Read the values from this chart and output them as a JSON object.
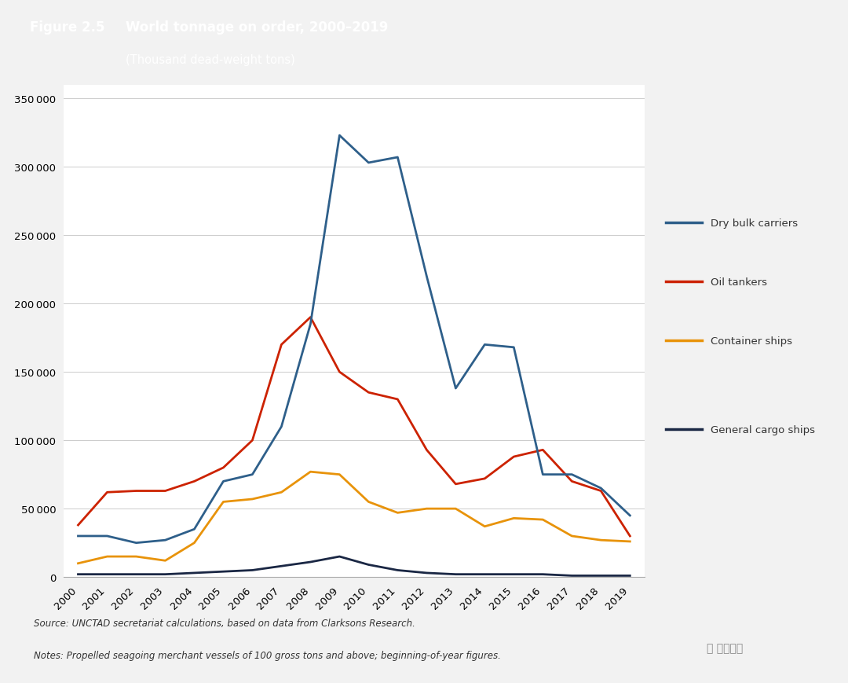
{
  "title_fig": "Figure 2.5",
  "title_main": "World tonnage on order, 2000–2019",
  "title_sub": "(Thousand dead-weight tons)",
  "years": [
    2000,
    2001,
    2002,
    2003,
    2004,
    2005,
    2006,
    2007,
    2008,
    2009,
    2010,
    2011,
    2012,
    2013,
    2014,
    2015,
    2016,
    2017,
    2018,
    2019
  ],
  "dry_bulk": [
    30000,
    30000,
    25000,
    27000,
    35000,
    70000,
    75000,
    110000,
    185000,
    323000,
    303000,
    307000,
    220000,
    138000,
    170000,
    168000,
    75000,
    75000,
    65000,
    45000
  ],
  "oil_tankers": [
    38000,
    62000,
    63000,
    63000,
    70000,
    80000,
    100000,
    170000,
    190000,
    150000,
    135000,
    130000,
    93000,
    68000,
    72000,
    88000,
    93000,
    70000,
    63000,
    30000
  ],
  "container_ships": [
    10000,
    15000,
    15000,
    12000,
    25000,
    55000,
    57000,
    62000,
    77000,
    75000,
    55000,
    47000,
    50000,
    50000,
    37000,
    43000,
    42000,
    30000,
    27000,
    26000
  ],
  "general_cargo": [
    2000,
    2000,
    2000,
    2000,
    3000,
    4000,
    5000,
    8000,
    11000,
    15000,
    9000,
    5000,
    3000,
    2000,
    2000,
    2000,
    2000,
    1000,
    1000,
    1000
  ],
  "color_dry_bulk": "#2e5f8a",
  "color_oil_tankers": "#cc2200",
  "color_container": "#e8930a",
  "color_general": "#1a2744",
  "legend_labels": [
    "Dry bulk carriers",
    "Oil tankers",
    "Container ships",
    "General cargo ships"
  ],
  "ylim": [
    0,
    360000
  ],
  "yticks": [
    0,
    50000,
    100000,
    150000,
    200000,
    250000,
    300000,
    350000
  ],
  "source_text": "Source: UNCTAD secretariat calculations, based on data from Clarksons Research.",
  "notes_text": "Notes: Propelled seagoing merchant vessels of 100 gross tons and above; beginning-of-year figures.",
  "header_bg": "#1b4f72",
  "header_text_color": "#ffffff",
  "bg_color": "#f2f2f2",
  "plot_bg": "#ffffff",
  "grid_color": "#cccccc"
}
